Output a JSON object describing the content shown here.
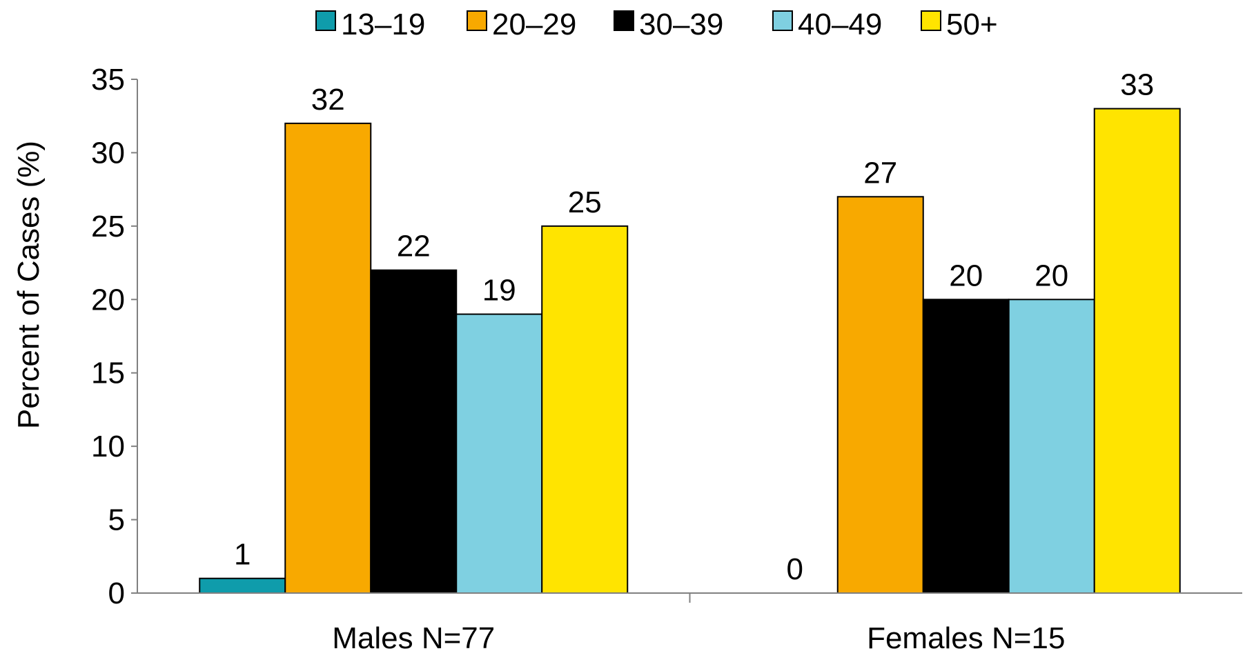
{
  "chart_data": {
    "type": "bar",
    "categories": [
      "Males N=77",
      "Females N=15"
    ],
    "series": [
      {
        "name": "13–19",
        "color": "#0f9cab",
        "values": [
          1,
          0
        ]
      },
      {
        "name": "20–29",
        "color": "#f8a900",
        "values": [
          32,
          27
        ]
      },
      {
        "name": "30–39",
        "color": "#000000",
        "values": [
          22,
          20
        ]
      },
      {
        "name": "40–49",
        "color": "#7fd0e1",
        "values": [
          19,
          20
        ]
      },
      {
        "name": "50+",
        "color": "#ffe400",
        "values": [
          25,
          33
        ]
      }
    ],
    "ylabel": "Percent of Cases (%)",
    "xlabel": "",
    "ylim": [
      0,
      35
    ],
    "yticks": [
      "0",
      "5",
      "10",
      "15",
      "20",
      "25",
      "30",
      "35"
    ],
    "grid": false,
    "legend_position": "top",
    "data_labels": [
      [
        "1",
        "32",
        "22",
        "19",
        "25"
      ],
      [
        "0",
        "27",
        "20",
        "20",
        "33"
      ]
    ]
  }
}
